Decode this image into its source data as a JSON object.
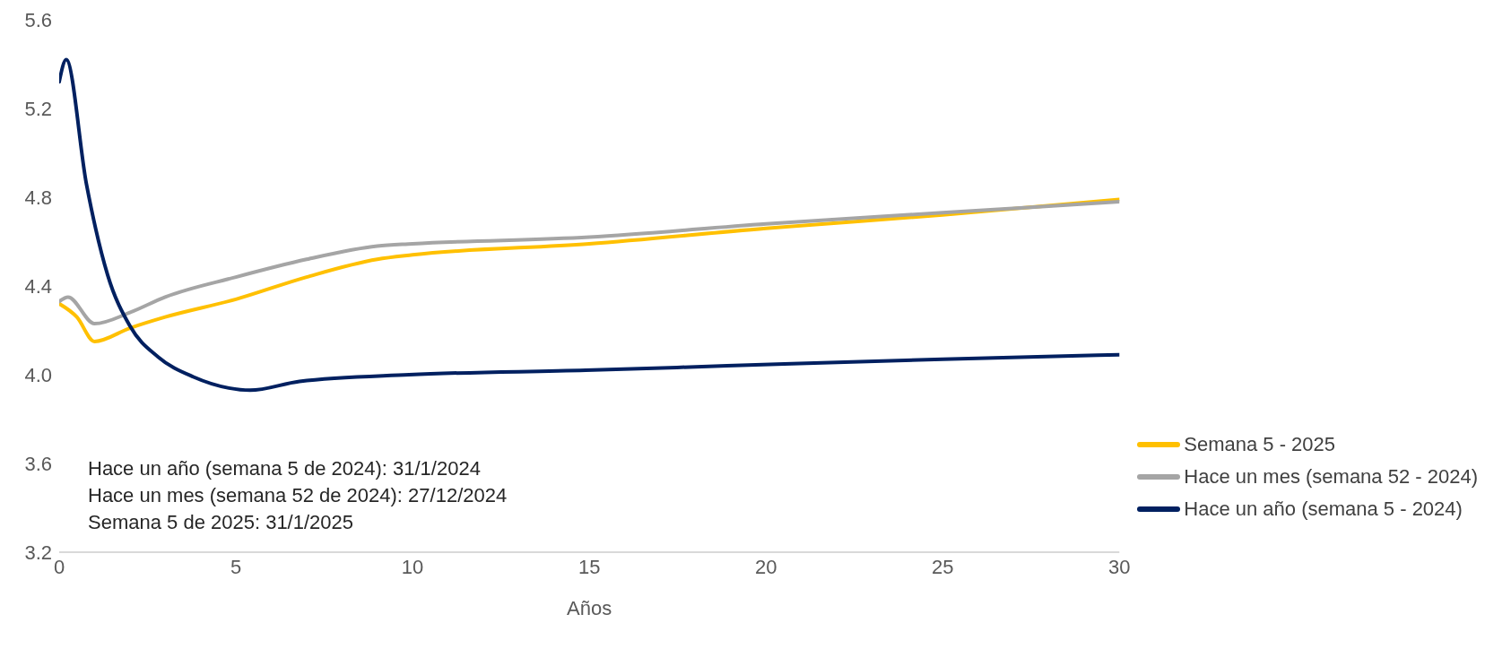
{
  "chart_data": {
    "type": "line",
    "xlabel": "Años",
    "xlim": [
      0,
      30
    ],
    "xticks": [
      0,
      5,
      10,
      15,
      20,
      25,
      30
    ],
    "ylim": [
      3.2,
      5.6
    ],
    "yticks": [
      3.2,
      3.6,
      {
        "value": 4,
        "label": "4.0"
      },
      4.4,
      4.8,
      5.2,
      5.6
    ],
    "grid": false,
    "legend": "bottom right",
    "marker": "none",
    "line_style": "solid",
    "annotations": [
      "Hace un año (semana 5 de 2024): 31/1/2024",
      "Hace un mes (semana 52 de 2024): 27/12/2024",
      "Semana 5 de 2025: 31/1/2025"
    ],
    "series": [
      {
        "name": "Semana 5 - 2025",
        "color": "#ffc000",
        "x": [
          0,
          0.5,
          1,
          2,
          3,
          5,
          7,
          9,
          10,
          15,
          20,
          25,
          30
        ],
        "values": [
          4.32,
          4.26,
          4.15,
          4.21,
          4.26,
          4.34,
          4.44,
          4.52,
          4.54,
          4.59,
          4.66,
          4.72,
          4.79
        ]
      },
      {
        "name": "Hace un mes (semana 52 - 2024)",
        "color": "#a5a5a5",
        "x": [
          0,
          0.25,
          1,
          2,
          3,
          5,
          7,
          9,
          10,
          15,
          20,
          25,
          30
        ],
        "values": [
          4.33,
          4.35,
          4.23,
          4.28,
          4.35,
          4.44,
          4.52,
          4.58,
          4.59,
          4.62,
          4.68,
          4.73,
          4.78
        ]
      },
      {
        "name": "Hace un año (semana 5 - 2024)",
        "color": "#002060",
        "x": [
          0,
          0.2,
          0.77,
          1.37,
          2,
          2.8,
          3.8,
          4.8,
          5.4,
          6.8,
          9.9,
          14.9,
          18.9,
          25,
          30
        ],
        "values": [
          5.32,
          5.42,
          4.86,
          4.45,
          4.22,
          4.08,
          3.99,
          3.94,
          3.93,
          3.97,
          4.0,
          4.02,
          4.04,
          4.07,
          4.09
        ]
      }
    ]
  }
}
